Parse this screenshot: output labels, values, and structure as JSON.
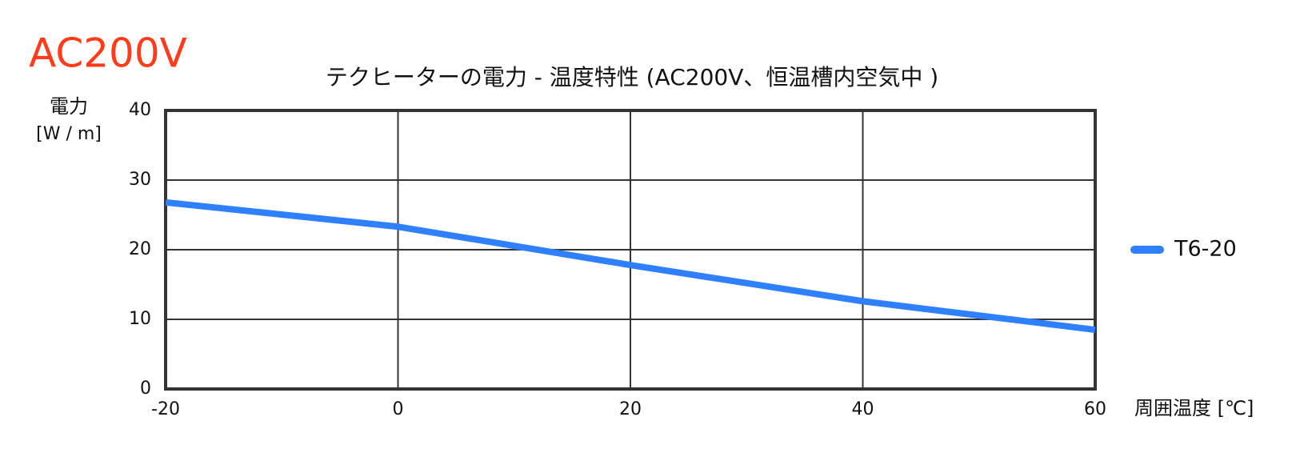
{
  "chart_data": {
    "type": "line",
    "badge": "AC200V",
    "badge_color": "#ff3b1a",
    "title": "テクヒーターの電力 - 温度特性 (AC200V、恒温槽内空気中 )",
    "ylabel": [
      "電力",
      "[W / m]"
    ],
    "xlabel": "周囲温度 [℃]",
    "x": [
      -20,
      0,
      20,
      40,
      60
    ],
    "series": [
      {
        "name": "T6-20",
        "color": "#2f80ff",
        "values": [
          26.8,
          23.3,
          17.8,
          12.6,
          8.5
        ]
      }
    ],
    "xlim": [
      -20,
      60
    ],
    "xticks": [
      -20,
      0,
      20,
      40,
      60
    ],
    "ylim": [
      0,
      40
    ],
    "yticks": [
      0,
      10,
      20,
      30,
      40
    ],
    "grid": true,
    "legend": "right"
  }
}
